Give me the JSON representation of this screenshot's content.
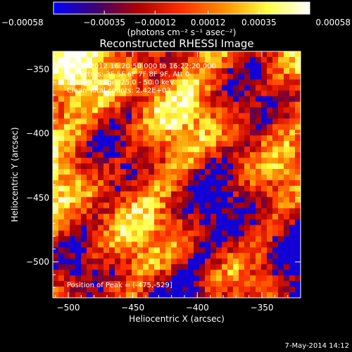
{
  "chart_data": {
    "type": "heatmap",
    "title": "Reconstructed RHESSI Image",
    "xlabel": "Heliocentric X (arcsec)",
    "ylabel": "Heliocentric Y (arcsec)",
    "xlim": [
      -512,
      -320
    ],
    "ylim": [
      -528,
      -336
    ],
    "x_ticks": [
      -500,
      -450,
      -400,
      -350
    ],
    "y_ticks": [
      -500,
      -450,
      -400,
      -350
    ],
    "colorbar": {
      "range": [
        -0.00058,
        0.00058
      ],
      "ticks": [
        -0.00058,
        -0.00035,
        -0.00012,
        0.00012,
        0.00035,
        0.00058
      ],
      "tick_labels": [
        "−0.00058",
        "−0.00035",
        "−0.00012",
        "0.00012",
        "0.00035",
        "0.00058"
      ],
      "unit_label": "(photons cm⁻² s⁻¹ asec⁻²)",
      "colors": [
        "#0000ff",
        "#400070",
        "#b00000",
        "#ff3000",
        "#ff9000",
        "#ffff40",
        "#ffffff"
      ]
    },
    "annotations": [
      "30-Jul-2012 16:20:50.000 to 16:22:20.000",
      "Detectors: 3F 5F 6F 7F 8F 9F, Att 0",
      "Energy Range: 25.0 - 50.0 keV",
      "Clean    Total counts: 2.42E+03"
    ],
    "peak_label": "Position of Peak = [-475,-529]",
    "timestamp": "7-May-2014 14:12"
  }
}
